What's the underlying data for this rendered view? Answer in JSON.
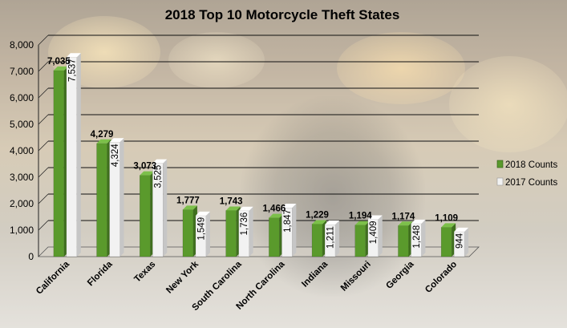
{
  "chart_data": {
    "type": "bar",
    "title": "2018 Top 10 Motorcycle Theft States",
    "categories": [
      "California",
      "Florida",
      "Texas",
      "New York",
      "South Carolina",
      "North Carolina",
      "Indiana",
      "Missouri",
      "Georgia",
      "Colorado"
    ],
    "series": [
      {
        "name": "2018 Counts",
        "values": [
          7035,
          4279,
          3073,
          1777,
          1743,
          1466,
          1229,
          1194,
          1174,
          1109
        ],
        "labels": [
          "7,035",
          "4,279",
          "3,073",
          "1,777",
          "1,743",
          "1,466",
          "1,229",
          "1,194",
          "1,174",
          "1,109"
        ]
      },
      {
        "name": "2017 Counts",
        "values": [
          7537,
          4324,
          3525,
          1549,
          1736,
          1847,
          1211,
          1409,
          1248,
          944
        ],
        "labels": [
          "7,537",
          "4,324",
          "3,525",
          "1,549",
          "1,736",
          "1,847",
          "1,211",
          "1,409",
          "1,248",
          "944"
        ]
      }
    ],
    "yticks": [
      "0",
      "1,000",
      "2,000",
      "3,000",
      "4,000",
      "5,000",
      "6,000",
      "7,000",
      "8,000"
    ],
    "ylim": [
      0,
      8000
    ],
    "grid": true,
    "legend_position": "right",
    "colors": {
      "s2018": "#5a9a2c",
      "s2018_dark": "#3f6f1e",
      "s2017": "#f2f2f2",
      "s2017_dark": "#c6c6c6"
    }
  }
}
